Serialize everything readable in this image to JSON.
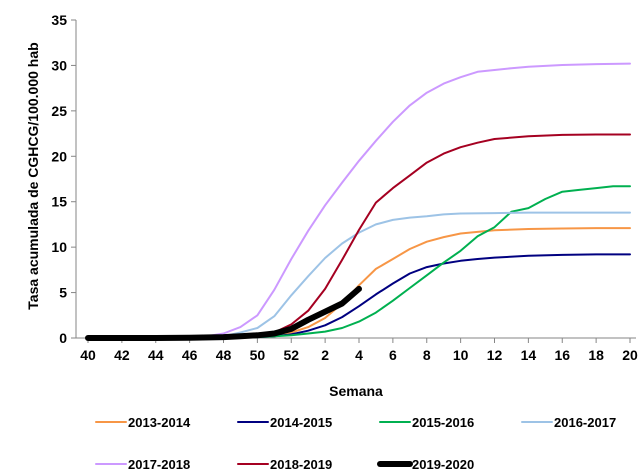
{
  "chart_data": {
    "type": "line",
    "title": "",
    "xlabel": "Semana",
    "ylabel": "Tasa acumulada  de CGHCG/100.000 hab",
    "ylim": [
      0,
      35
    ],
    "yticks": [
      "0",
      "5",
      "10",
      "15",
      "20",
      "25",
      "30",
      "35"
    ],
    "xticks": [
      "40",
      "42",
      "44",
      "46",
      "48",
      "50",
      "52",
      "2",
      "4",
      "6",
      "8",
      "10",
      "12",
      "14",
      "16",
      "18",
      "20"
    ],
    "x_index_range": [
      0,
      32
    ],
    "grid": false,
    "legend_position": "bottom",
    "series": [
      {
        "name": "2013-2014",
        "color": "#F79646",
        "x": [
          0,
          2,
          4,
          6,
          8,
          10,
          11,
          12,
          13,
          14,
          15,
          16,
          17,
          18,
          19,
          20,
          21,
          22,
          24,
          26,
          28,
          30,
          32
        ],
        "y": [
          0,
          0,
          0,
          0.05,
          0.1,
          0.2,
          0.3,
          0.6,
          1.2,
          2.2,
          3.8,
          5.8,
          7.6,
          8.7,
          9.8,
          10.6,
          11.1,
          11.5,
          11.85,
          12.0,
          12.05,
          12.1,
          12.1
        ]
      },
      {
        "name": "2014-2015",
        "color": "#000080",
        "x": [
          0,
          2,
          4,
          6,
          8,
          10,
          11,
          12,
          13,
          14,
          15,
          16,
          17,
          18,
          19,
          20,
          21,
          22,
          23,
          24,
          26,
          28,
          30,
          32
        ],
        "y": [
          0,
          0,
          0,
          0.02,
          0.05,
          0.1,
          0.2,
          0.4,
          0.8,
          1.4,
          2.3,
          3.5,
          4.8,
          6.0,
          7.1,
          7.8,
          8.2,
          8.5,
          8.7,
          8.85,
          9.05,
          9.15,
          9.2,
          9.2
        ]
      },
      {
        "name": "2015-2016",
        "color": "#00B050",
        "x": [
          0,
          2,
          4,
          6,
          8,
          10,
          11,
          12,
          13,
          14,
          15,
          16,
          17,
          18,
          19,
          20,
          21,
          22,
          23,
          24,
          25,
          26,
          27,
          28,
          29,
          30,
          31,
          32
        ],
        "y": [
          0,
          0,
          0,
          0,
          0.03,
          0.1,
          0.2,
          0.3,
          0.5,
          0.7,
          1.1,
          1.8,
          2.8,
          4.1,
          5.5,
          6.9,
          8.3,
          9.6,
          11.2,
          12.2,
          13.9,
          14.3,
          15.3,
          16.1,
          16.3,
          16.5,
          16.7,
          16.7
        ]
      },
      {
        "name": "2016-2017",
        "color": "#9DC3E6",
        "x": [
          0,
          2,
          4,
          6,
          8,
          9,
          10,
          11,
          12,
          13,
          14,
          15,
          16,
          17,
          18,
          19,
          20,
          21,
          22,
          24,
          26,
          28,
          30,
          32
        ],
        "y": [
          0,
          0,
          0,
          0.05,
          0.2,
          0.6,
          1.1,
          2.4,
          4.7,
          6.8,
          8.8,
          10.4,
          11.6,
          12.5,
          13.0,
          13.25,
          13.4,
          13.6,
          13.7,
          13.75,
          13.8,
          13.8,
          13.8,
          13.8
        ]
      },
      {
        "name": "2017-2018",
        "color": "#CC99FF",
        "x": [
          0,
          2,
          4,
          6,
          7,
          8,
          9,
          10,
          11,
          12,
          13,
          14,
          15,
          16,
          17,
          18,
          19,
          20,
          21,
          22,
          23,
          24,
          25,
          26,
          28,
          30,
          32
        ],
        "y": [
          0,
          0,
          0,
          0.1,
          0.2,
          0.5,
          1.2,
          2.5,
          5.3,
          8.7,
          11.8,
          14.6,
          17.1,
          19.5,
          21.7,
          23.8,
          25.6,
          27.0,
          28.0,
          28.7,
          29.3,
          29.5,
          29.7,
          29.85,
          30.05,
          30.15,
          30.2
        ]
      },
      {
        "name": "2018-2019",
        "color": "#A50021",
        "x": [
          0,
          2,
          4,
          6,
          8,
          10,
          11,
          12,
          13,
          14,
          15,
          16,
          17,
          18,
          19,
          20,
          21,
          22,
          23,
          24,
          26,
          28,
          30,
          32
        ],
        "y": [
          0,
          0,
          0,
          0.05,
          0.1,
          0.3,
          0.6,
          1.5,
          3.0,
          5.4,
          8.6,
          11.9,
          14.9,
          16.5,
          17.9,
          19.3,
          20.3,
          21.0,
          21.5,
          21.9,
          22.2,
          22.35,
          22.4,
          22.4
        ]
      },
      {
        "name": "2019-2020",
        "color": "#000000",
        "thick": true,
        "x": [
          0,
          2,
          4,
          6,
          8,
          9,
          10,
          11,
          12,
          13,
          14,
          15,
          16
        ],
        "y": [
          0,
          0,
          0,
          0.02,
          0.1,
          0.2,
          0.3,
          0.5,
          1.0,
          2.0,
          2.9,
          3.8,
          5.4
        ]
      }
    ]
  }
}
